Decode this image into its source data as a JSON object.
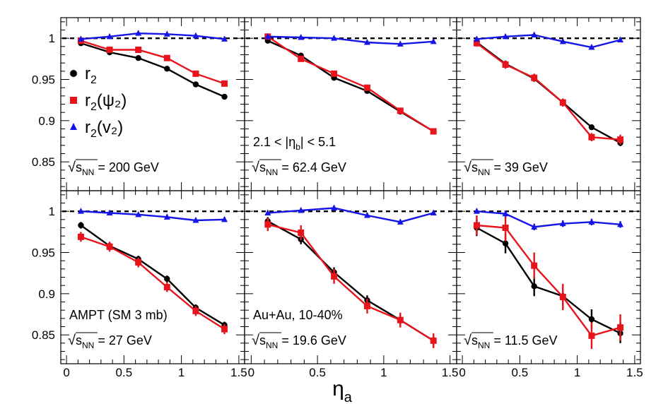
{
  "chart_data": {
    "type": "scatter",
    "layout": "2x3 grid of panels",
    "xlabel": "η",
    "xlabel_sub": "a",
    "xlim": [
      -0.05,
      1.55
    ],
    "ylim": [
      0.815,
      1.025
    ],
    "xticks": [
      0,
      0.5,
      1,
      1.5
    ],
    "xtick_labels": [
      "0",
      "0.5",
      "1",
      "1.5"
    ],
    "yticks": [
      0.85,
      0.9,
      0.95,
      1
    ],
    "ytick_labels": [
      "0.85",
      "0.9",
      "0.95",
      "1"
    ],
    "reference_line": 1,
    "x_points": [
      0.125,
      0.375,
      0.625,
      0.875,
      1.125,
      1.375
    ],
    "legend": [
      {
        "key": "r2",
        "base": "r",
        "sub": "2",
        "suffix": "",
        "color": "#000000",
        "marker": "circle"
      },
      {
        "key": "psi",
        "base": "r",
        "sub": "2",
        "suffix": "(ψ₂)",
        "color": "#e8141b",
        "marker": "square"
      },
      {
        "key": "v2",
        "base": "r",
        "sub": "2",
        "suffix": "(v₂)",
        "color": "#1515e8",
        "marker": "triangle"
      }
    ],
    "panels": [
      {
        "energy": "200 GeV",
        "label": "",
        "series": [
          {
            "name": "r2",
            "color": "#000000",
            "marker": "circle",
            "values": [
              0.994,
              0.983,
              0.976,
              0.963,
              0.944,
              0.929
            ],
            "errors": [
              0.001,
              0.001,
              0.001,
              0.001,
              0.001,
              0.001
            ]
          },
          {
            "name": "r2(psi2)",
            "color": "#e8141b",
            "marker": "square",
            "values": [
              0.997,
              0.986,
              0.986,
              0.976,
              0.957,
              0.945
            ],
            "errors": [
              0.001,
              0.001,
              0.001,
              0.002,
              0.002,
              0.002
            ]
          },
          {
            "name": "r2(v2)",
            "color": "#1515e8",
            "marker": "triangle",
            "values": [
              0.999,
              1.002,
              1.006,
              1.005,
              1.003,
              0.999
            ],
            "errors": [
              0.001,
              0.001,
              0.001,
              0.001,
              0.001,
              0.001
            ]
          }
        ]
      },
      {
        "energy": "62.4 GeV",
        "label": "2.1 < |η_b| < 5.1",
        "series": [
          {
            "name": "r2",
            "color": "#000000",
            "marker": "circle",
            "values": [
              0.997,
              0.979,
              0.952,
              0.936,
              0.911,
              0.887
            ],
            "errors": [
              0.002,
              0.002,
              0.002,
              0.002,
              0.002,
              0.002
            ]
          },
          {
            "name": "r2(psi2)",
            "color": "#e8141b",
            "marker": "square",
            "values": [
              1.002,
              0.975,
              0.957,
              0.94,
              0.912,
              0.887
            ],
            "errors": [
              0.003,
              0.003,
              0.003,
              0.003,
              0.003,
              0.003
            ]
          },
          {
            "name": "r2(v2)",
            "color": "#1515e8",
            "marker": "triangle",
            "values": [
              1.002,
              1.001,
              1.0,
              0.995,
              0.993,
              0.996
            ],
            "errors": [
              0.001,
              0.001,
              0.001,
              0.001,
              0.002,
              0.002
            ]
          }
        ]
      },
      {
        "energy": "39 GeV",
        "label": "",
        "series": [
          {
            "name": "r2",
            "color": "#000000",
            "marker": "circle",
            "values": [
              0.995,
              0.969,
              0.951,
              0.922,
              0.892,
              0.873
            ],
            "errors": [
              0.002,
              0.003,
              0.003,
              0.003,
              0.003,
              0.004
            ]
          },
          {
            "name": "r2(psi2)",
            "color": "#e8141b",
            "marker": "square",
            "values": [
              0.994,
              0.968,
              0.952,
              0.922,
              0.88,
              0.877
            ],
            "errors": [
              0.004,
              0.005,
              0.005,
              0.005,
              0.005,
              0.006
            ]
          },
          {
            "name": "r2(v2)",
            "color": "#1515e8",
            "marker": "triangle",
            "values": [
              0.999,
              1.002,
              1.004,
              0.996,
              0.989,
              0.998
            ],
            "errors": [
              0.002,
              0.002,
              0.003,
              0.003,
              0.003,
              0.003
            ]
          }
        ]
      },
      {
        "energy": "27 GeV",
        "label": "AMPT (SM 3 mb)",
        "series": [
          {
            "name": "r2",
            "color": "#000000",
            "marker": "circle",
            "values": [
              0.983,
              0.958,
              0.942,
              0.918,
              0.883,
              0.862
            ],
            "errors": [
              0.004,
              0.004,
              0.004,
              0.004,
              0.004,
              0.004
            ]
          },
          {
            "name": "r2(psi2)",
            "color": "#e8141b",
            "marker": "square",
            "values": [
              0.969,
              0.957,
              0.938,
              0.908,
              0.879,
              0.857
            ],
            "errors": [
              0.006,
              0.006,
              0.006,
              0.006,
              0.006,
              0.006
            ]
          },
          {
            "name": "r2(v2)",
            "color": "#1515e8",
            "marker": "triangle",
            "values": [
              1.0,
              0.998,
              0.996,
              0.993,
              0.989,
              0.99
            ],
            "errors": [
              0.002,
              0.002,
              0.002,
              0.003,
              0.003,
              0.003
            ]
          }
        ]
      },
      {
        "energy": "19.6 GeV",
        "label": "Au+Au, 10-40%",
        "series": [
          {
            "name": "r2",
            "color": "#000000",
            "marker": "circle",
            "values": [
              0.988,
              0.966,
              0.926,
              0.892,
              0.868,
              0.843
            ],
            "errors": [
              0.005,
              0.006,
              0.006,
              0.006,
              0.006,
              0.006
            ]
          },
          {
            "name": "r2(psi2)",
            "color": "#e8141b",
            "marker": "square",
            "values": [
              0.984,
              0.974,
              0.921,
              0.885,
              0.868,
              0.843
            ],
            "errors": [
              0.008,
              0.009,
              0.009,
              0.009,
              0.009,
              0.009
            ]
          },
          {
            "name": "r2(v2)",
            "color": "#1515e8",
            "marker": "triangle",
            "values": [
              0.998,
              1.001,
              1.004,
              0.995,
              0.987,
              0.998
            ],
            "errors": [
              0.002,
              0.003,
              0.003,
              0.003,
              0.003,
              0.003
            ]
          }
        ]
      },
      {
        "energy": "11.5 GeV",
        "label": "",
        "series": [
          {
            "name": "r2",
            "color": "#000000",
            "marker": "circle",
            "values": [
              0.98,
              0.961,
              0.909,
              0.897,
              0.869,
              0.852
            ],
            "errors": [
              0.01,
              0.012,
              0.012,
              0.012,
              0.012,
              0.012
            ]
          },
          {
            "name": "r2(psi2)",
            "color": "#e8141b",
            "marker": "square",
            "values": [
              0.983,
              0.98,
              0.934,
              0.896,
              0.849,
              0.859
            ],
            "errors": [
              0.012,
              0.016,
              0.016,
              0.016,
              0.016,
              0.016
            ]
          },
          {
            "name": "r2(v2)",
            "color": "#1515e8",
            "marker": "triangle",
            "values": [
              1.0,
              0.997,
              0.981,
              0.985,
              0.987,
              0.984
            ],
            "errors": [
              0.003,
              0.004,
              0.004,
              0.004,
              0.004,
              0.004
            ]
          }
        ]
      }
    ]
  }
}
